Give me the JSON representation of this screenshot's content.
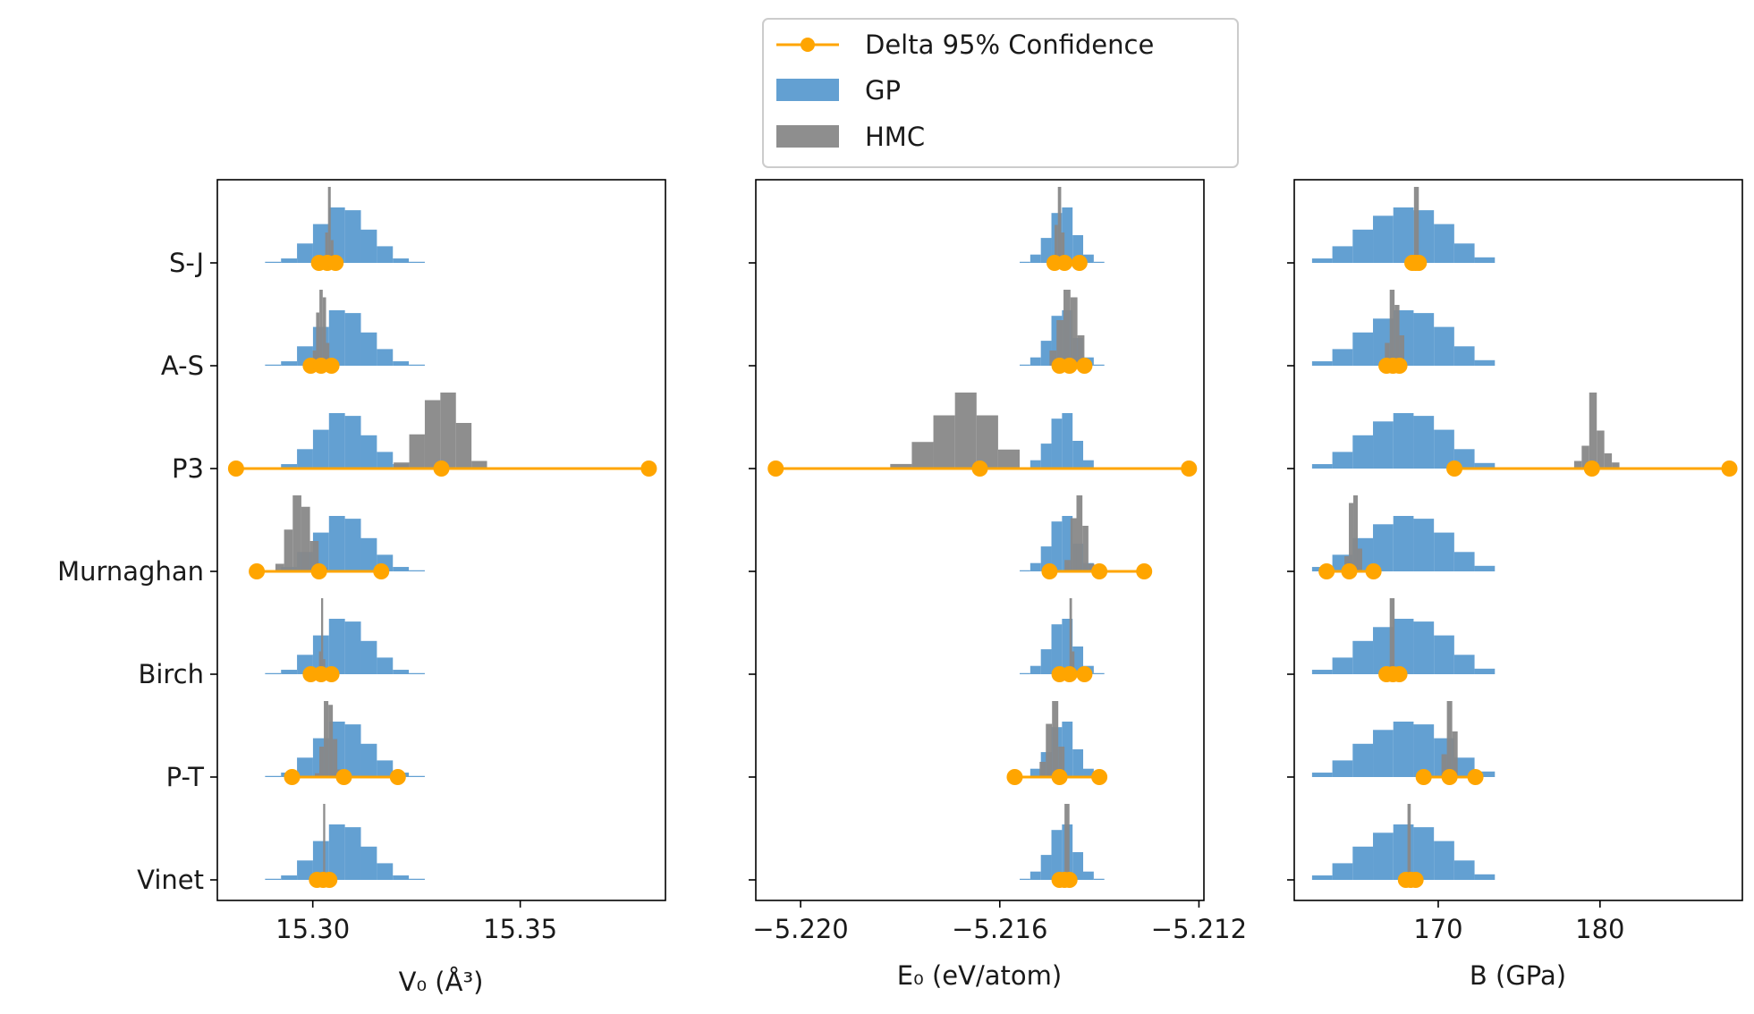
{
  "legend": {
    "items": [
      {
        "label": "Delta 95% Confidence",
        "kind": "line",
        "color": "#FFA500"
      },
      {
        "label": "GP",
        "kind": "patch",
        "color": "#5B9BD0"
      },
      {
        "label": "HMC",
        "kind": "patch",
        "color": "#888888"
      }
    ]
  },
  "chart_data": [
    {
      "type": "histogram",
      "xlabel": "V₀ (Å³)",
      "xlim": [
        15.277,
        15.385
      ],
      "xticks": [
        15.3,
        15.35
      ],
      "xtick_labels": [
        "15.30",
        "15.35"
      ],
      "categories": [
        "S-J",
        "A-S",
        "P3",
        "Murnaghan",
        "Birch",
        "P-T",
        "Vinet"
      ],
      "gp": {
        "lo": 15.2885,
        "hi": 15.327,
        "heights": [
          0.02,
          0.08,
          0.35,
          0.7,
          1.0,
          0.95,
          0.6,
          0.3,
          0.08,
          0.02
        ]
      },
      "hmc": [
        {
          "lo": 15.303,
          "hi": 15.305,
          "heights": [
            0.4,
            1.0,
            0.3
          ]
        },
        {
          "lo": 15.3,
          "hi": 15.304,
          "heights": [
            0.2,
            0.7,
            1.0,
            0.9,
            0.3
          ]
        },
        {
          "lo": 15.3195,
          "hi": 15.342,
          "heights": [
            0.08,
            0.45,
            0.9,
            1.0,
            0.6,
            0.1
          ]
        },
        {
          "lo": 15.291,
          "hi": 15.3035,
          "heights": [
            0.1,
            0.55,
            1.0,
            0.85,
            0.4,
            0.05
          ]
        },
        {
          "lo": 15.3015,
          "hi": 15.303,
          "heights": [
            0.3,
            1.0,
            0.2
          ]
        },
        {
          "lo": 15.3005,
          "hi": 15.307,
          "heights": [
            0.05,
            0.4,
            1.0,
            0.95,
            0.5,
            0.1
          ]
        },
        {
          "lo": 15.3025,
          "hi": 15.303,
          "heights": [
            1.0
          ]
        }
      ],
      "delta": [
        [
          15.3015,
          15.3035,
          15.3055
        ],
        [
          15.2995,
          15.302,
          15.3045
        ],
        [
          15.2815,
          15.331,
          15.381
        ],
        [
          15.2865,
          15.3015,
          15.3165
        ],
        [
          15.2995,
          15.302,
          15.3045
        ],
        [
          15.295,
          15.3075,
          15.3205
        ],
        [
          15.301,
          15.3025,
          15.304
        ]
      ]
    },
    {
      "type": "histogram",
      "xlabel": "E₀ (eV/atom)",
      "xlim": [
        -5.2209,
        -5.2119
      ],
      "xticks": [
        -5.22,
        -5.216,
        -5.212
      ],
      "xtick_labels": [
        "−5.220",
        "−5.216",
        "−5.212"
      ],
      "categories": [
        "S-J",
        "A-S",
        "P3",
        "Murnaghan",
        "Birch",
        "P-T",
        "Vinet"
      ],
      "gp": {
        "lo": -5.2156,
        "hi": -5.2139,
        "heights": [
          0.02,
          0.15,
          0.45,
          0.9,
          1.0,
          0.5,
          0.15,
          0.02
        ]
      },
      "hmc": [
        {
          "lo": -5.2149,
          "hi": -5.2147,
          "heights": [
            0.5,
            1.0,
            0.4
          ]
        },
        {
          "lo": -5.215,
          "hi": -5.2143,
          "heights": [
            0.2,
            0.6,
            1.0,
            0.9,
            0.4
          ]
        },
        {
          "lo": -5.2182,
          "hi": -5.2156,
          "heights": [
            0.06,
            0.35,
            0.7,
            1.0,
            0.7,
            0.25
          ]
        },
        {
          "lo": -5.2147,
          "hi": -5.2141,
          "heights": [
            0.15,
            0.7,
            1.0,
            0.6,
            0.1
          ]
        },
        {
          "lo": -5.2146,
          "hi": -5.2145,
          "heights": [
            1.0,
            0.3
          ]
        },
        {
          "lo": -5.2152,
          "hi": -5.2147,
          "heights": [
            0.2,
            0.7,
            1.0,
            0.4
          ]
        },
        {
          "lo": -5.2147,
          "hi": -5.2146,
          "heights": [
            1.0
          ]
        }
      ],
      "delta": [
        [
          -5.2149,
          -5.2147,
          -5.2144
        ],
        [
          -5.2148,
          -5.2146,
          -5.2143
        ],
        [
          -5.2205,
          -5.2164,
          -5.2122
        ],
        [
          -5.215,
          -5.214,
          -5.2131
        ],
        [
          -5.2148,
          -5.2146,
          -5.2143
        ],
        [
          -5.2157,
          -5.2148,
          -5.214
        ],
        [
          -5.2148,
          -5.2147,
          -5.2146
        ]
      ]
    },
    {
      "type": "histogram",
      "xlabel": "B (GPa)",
      "xlim": [
        161.1,
        188.8
      ],
      "xticks": [
        170,
        180
      ],
      "xtick_labels": [
        "170",
        "180"
      ],
      "categories": [
        "S-J",
        "A-S",
        "P3",
        "Murnaghan",
        "Birch",
        "P-T",
        "Vinet"
      ],
      "gp": {
        "lo": 162.2,
        "hi": 173.5,
        "heights": [
          0.08,
          0.3,
          0.6,
          0.85,
          1.0,
          0.95,
          0.7,
          0.35,
          0.1
        ]
      },
      "hmc": [
        {
          "lo": 168.5,
          "hi": 168.8,
          "heights": [
            1.0
          ]
        },
        {
          "lo": 166.7,
          "hi": 167.9,
          "heights": [
            0.3,
            1.0,
            0.8,
            0.4
          ]
        },
        {
          "lo": 178.4,
          "hi": 181.2,
          "heights": [
            0.1,
            0.3,
            1.0,
            0.5,
            0.2,
            0.08
          ]
        },
        {
          "lo": 164.2,
          "hi": 165.3,
          "heights": [
            0.2,
            0.9,
            1.0,
            0.3
          ]
        },
        {
          "lo": 167.0,
          "hi": 167.3,
          "heights": [
            1.0
          ]
        },
        {
          "lo": 170.2,
          "hi": 171.2,
          "heights": [
            0.3,
            1.0,
            0.6
          ]
        },
        {
          "lo": 168.1,
          "hi": 168.3,
          "heights": [
            1.0
          ]
        }
      ],
      "delta": [
        [
          168.4,
          168.6,
          168.8
        ],
        [
          166.8,
          167.2,
          167.6
        ],
        [
          171.0,
          179.5,
          188.0
        ],
        [
          163.1,
          164.5,
          166.0
        ],
        [
          166.8,
          167.2,
          167.6
        ],
        [
          169.1,
          170.7,
          172.3
        ],
        [
          168.0,
          168.3,
          168.6
        ]
      ]
    }
  ]
}
